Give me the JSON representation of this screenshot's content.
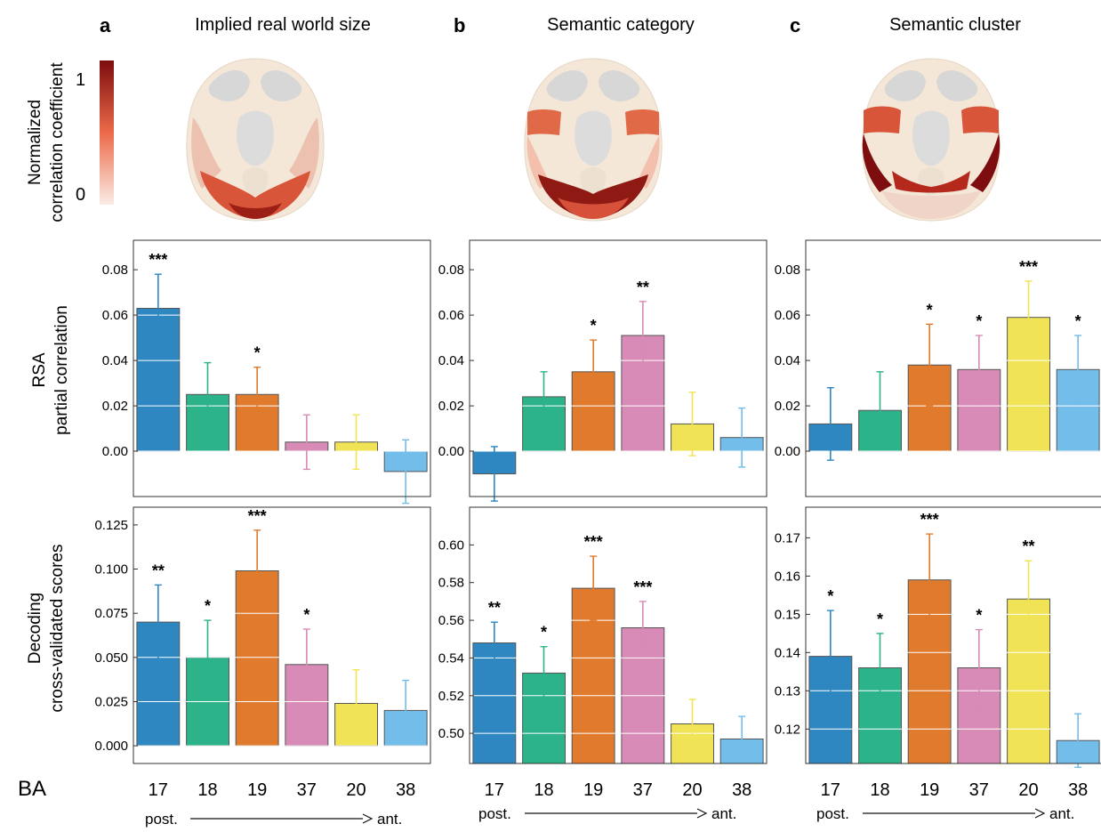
{
  "figure": {
    "panel_letters": [
      "a",
      "b",
      "c"
    ],
    "panel_titles": [
      "Implied real world size",
      "Semantic category",
      "Semantic cluster"
    ],
    "brain_colorbar": {
      "title_line1": "Normalized",
      "title_line2": "correlation coefficient",
      "max_label": "1",
      "min_label": "0",
      "color_low": "#fbece6",
      "color_mid": "#ec6a49",
      "color_high": "#7d0d0e"
    },
    "row_labels": {
      "rsa_line1": "RSA",
      "rsa_line2": "partial correlation",
      "dec_line1": "Decoding",
      "dec_line2": "cross-validated scores"
    },
    "x_axis_title": "BA",
    "direction": {
      "start": "post.",
      "end": "ant."
    },
    "bar_colors": [
      "#2e87c0",
      "#2db38a",
      "#e07b2d",
      "#d88bb6",
      "#f1e356",
      "#72bde9"
    ]
  },
  "chart_data": [
    {
      "type": "bar",
      "panel": "a",
      "row": "RSA partial correlation",
      "categories": [
        "17",
        "18",
        "19",
        "37",
        "20",
        "38"
      ],
      "values": [
        0.063,
        0.025,
        0.025,
        0.004,
        0.004,
        -0.009
      ],
      "errors": [
        0.015,
        0.014,
        0.012,
        0.012,
        0.012,
        0.014
      ],
      "significance": [
        "***",
        "",
        "*",
        "",
        "",
        ""
      ],
      "ylim": [
        -0.02,
        0.093
      ],
      "yticks": [
        0.0,
        0.02,
        0.04,
        0.06,
        0.08
      ],
      "ytick_labels": [
        "0.00",
        "0.02",
        "0.04",
        "0.06",
        "0.08"
      ]
    },
    {
      "type": "bar",
      "panel": "b",
      "row": "RSA partial correlation",
      "categories": [
        "17",
        "18",
        "19",
        "37",
        "20",
        "38"
      ],
      "values": [
        -0.01,
        0.024,
        0.035,
        0.051,
        0.012,
        0.006
      ],
      "errors": [
        0.012,
        0.011,
        0.014,
        0.015,
        0.014,
        0.013
      ],
      "significance": [
        "",
        "",
        "*",
        "**",
        "",
        ""
      ],
      "ylim": [
        -0.02,
        0.093
      ],
      "yticks": [
        0.0,
        0.02,
        0.04,
        0.06,
        0.08
      ],
      "ytick_labels": [
        "0.00",
        "0.02",
        "0.04",
        "0.06",
        "0.08"
      ]
    },
    {
      "type": "bar",
      "panel": "c",
      "row": "RSA partial correlation",
      "categories": [
        "17",
        "18",
        "19",
        "37",
        "20",
        "38"
      ],
      "values": [
        0.012,
        0.018,
        0.038,
        0.036,
        0.059,
        0.036
      ],
      "errors": [
        0.016,
        0.017,
        0.018,
        0.015,
        0.016,
        0.015
      ],
      "significance": [
        "",
        "",
        "*",
        "*",
        "***",
        "*"
      ],
      "ylim": [
        -0.02,
        0.093
      ],
      "yticks": [
        0.0,
        0.02,
        0.04,
        0.06,
        0.08
      ],
      "ytick_labels": [
        "0.00",
        "0.02",
        "0.04",
        "0.06",
        "0.08"
      ]
    },
    {
      "type": "bar",
      "panel": "a",
      "row": "Decoding cross-validated scores",
      "categories": [
        "17",
        "18",
        "19",
        "37",
        "20",
        "38"
      ],
      "values": [
        0.07,
        0.05,
        0.099,
        0.046,
        0.024,
        0.02
      ],
      "errors": [
        0.021,
        0.021,
        0.023,
        0.02,
        0.019,
        0.017
      ],
      "significance": [
        "**",
        "*",
        "***",
        "*",
        "",
        ""
      ],
      "ylim": [
        -0.01,
        0.135
      ],
      "yticks": [
        0.0,
        0.025,
        0.05,
        0.075,
        0.1,
        0.125
      ],
      "ytick_labels": [
        "0.000",
        "0.025",
        "0.050",
        "0.075",
        "0.100",
        "0.125"
      ]
    },
    {
      "type": "bar",
      "panel": "b",
      "row": "Decoding cross-validated scores",
      "categories": [
        "17",
        "18",
        "19",
        "37",
        "20",
        "38"
      ],
      "values": [
        0.548,
        0.532,
        0.577,
        0.556,
        0.505,
        0.497
      ],
      "errors": [
        0.011,
        0.014,
        0.017,
        0.014,
        0.013,
        0.012
      ],
      "significance": [
        "**",
        "*",
        "***",
        "***",
        "",
        ""
      ],
      "ylim": [
        0.484,
        0.62
      ],
      "yticks": [
        0.5,
        0.52,
        0.54,
        0.56,
        0.58,
        0.6
      ],
      "ytick_labels": [
        "0.50",
        "0.52",
        "0.54",
        "0.56",
        "0.58",
        "0.60"
      ]
    },
    {
      "type": "bar",
      "panel": "c",
      "row": "Decoding cross-validated scores",
      "categories": [
        "17",
        "18",
        "19",
        "37",
        "20",
        "38"
      ],
      "values": [
        0.139,
        0.136,
        0.159,
        0.136,
        0.154,
        0.117
      ],
      "errors": [
        0.012,
        0.009,
        0.012,
        0.01,
        0.01,
        0.007
      ],
      "significance": [
        "*",
        "*",
        "***",
        "*",
        "**",
        ""
      ],
      "ylim": [
        0.111,
        0.178
      ],
      "yticks": [
        0.12,
        0.13,
        0.14,
        0.15,
        0.16,
        0.17
      ],
      "ytick_labels": [
        "0.12",
        "0.13",
        "0.14",
        "0.15",
        "0.16",
        "0.17"
      ]
    }
  ]
}
